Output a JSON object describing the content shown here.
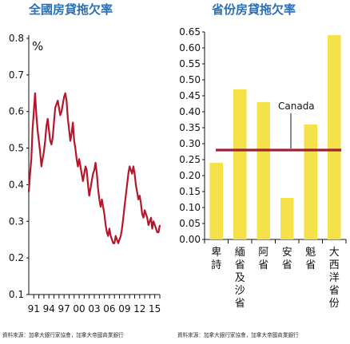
{
  "left_chart": {
    "title": "全國房貸拖欠率",
    "source": "資料來源：加拿大銀行家協會，加拿大帝國商業銀行"
  },
  "right_chart": {
    "title": "省份房貸拖欠率",
    "source": "資料來源：加拿大銀行家協會，加拿大帝國商業銀行"
  },
  "chart_data": [
    {
      "type": "line",
      "title": "全國房貸拖欠率",
      "unit_label": "%",
      "xlabel": "",
      "ylabel": "",
      "ylim": [
        0.1,
        0.8
      ],
      "y_ticks": [
        "0.8",
        "0.7",
        "0.6",
        "0.5",
        "0.4",
        "0.3",
        "0.2",
        "0.1"
      ],
      "x_tick_labels": [
        "91",
        "94",
        "97",
        "00",
        "03",
        "06",
        "09",
        "12",
        "15"
      ],
      "line_color": "#b5172a",
      "series": [
        {
          "x": [
            1990.0,
            1990.25,
            1990.5,
            1990.75,
            1991.0,
            1991.25,
            1991.5,
            1991.75,
            1992.0,
            1992.25,
            1992.5,
            1992.75,
            1993.0,
            1993.25,
            1993.5,
            1993.75,
            1994.0,
            1994.25,
            1994.5,
            1994.75,
            1995.0,
            1995.25,
            1995.5,
            1995.75,
            1996.0,
            1996.25,
            1996.5,
            1996.75,
            1997.0,
            1997.25,
            1997.5,
            1997.75,
            1998.0,
            1998.25,
            1998.5,
            1998.75,
            1999.0,
            1999.25,
            1999.5,
            1999.75,
            2000.0,
            2000.25,
            2000.5,
            2000.75,
            2001.0,
            2001.25,
            2001.5,
            2001.75,
            2002.0,
            2002.25,
            2002.5,
            2002.75,
            2003.0,
            2003.25,
            2003.5,
            2003.75,
            2004.0,
            2004.25,
            2004.5,
            2004.75,
            2005.0,
            2005.25,
            2005.5,
            2005.75,
            2006.0,
            2006.25,
            2006.5,
            2006.75,
            2007.0,
            2007.25,
            2007.5,
            2007.75,
            2008.0,
            2008.25,
            2008.5,
            2008.75,
            2009.0,
            2009.25,
            2009.5,
            2009.75,
            2010.0,
            2010.25,
            2010.5,
            2010.75,
            2011.0,
            2011.25,
            2011.5,
            2011.75,
            2012.0,
            2012.25,
            2012.5,
            2012.75,
            2013.0,
            2013.25,
            2013.5,
            2013.75,
            2014.0,
            2014.25,
            2014.5,
            2014.75,
            2015.0,
            2015.25,
            2015.5,
            2015.75,
            2016.0
          ],
          "values": [
            0.38,
            0.43,
            0.47,
            0.55,
            0.6,
            0.65,
            0.59,
            0.55,
            0.52,
            0.49,
            0.45,
            0.47,
            0.49,
            0.52,
            0.56,
            0.58,
            0.55,
            0.52,
            0.51,
            0.53,
            0.57,
            0.61,
            0.62,
            0.63,
            0.61,
            0.59,
            0.6,
            0.62,
            0.64,
            0.65,
            0.63,
            0.58,
            0.55,
            0.52,
            0.54,
            0.57,
            0.52,
            0.5,
            0.47,
            0.45,
            0.47,
            0.45,
            0.43,
            0.41,
            0.43,
            0.45,
            0.44,
            0.4,
            0.37,
            0.39,
            0.41,
            0.43,
            0.44,
            0.46,
            0.43,
            0.39,
            0.36,
            0.34,
            0.36,
            0.34,
            0.32,
            0.29,
            0.27,
            0.26,
            0.28,
            0.26,
            0.25,
            0.24,
            0.24,
            0.26,
            0.25,
            0.24,
            0.25,
            0.26,
            0.28,
            0.31,
            0.34,
            0.37,
            0.4,
            0.43,
            0.45,
            0.44,
            0.43,
            0.45,
            0.43,
            0.4,
            0.38,
            0.36,
            0.37,
            0.35,
            0.32,
            0.31,
            0.33,
            0.32,
            0.31,
            0.29,
            0.3,
            0.31,
            0.28,
            0.3,
            0.29,
            0.28,
            0.27,
            0.27,
            0.29
          ]
        }
      ]
    },
    {
      "type": "bar",
      "title": "省份房貸拖欠率",
      "xlabel": "",
      "ylabel": "",
      "ylim": [
        0.0,
        0.65
      ],
      "y_ticks": [
        "0.65",
        "0.60",
        "0.55",
        "0.50",
        "0.45",
        "0.40",
        "0.35",
        "0.30",
        "0.25",
        "0.20",
        "0.15",
        "0.10",
        "0.05",
        "0.00"
      ],
      "categories": [
        "卑詩",
        "緬省及沙省",
        "阿省",
        "安省",
        "魁省",
        "大西洋省份"
      ],
      "values": [
        0.24,
        0.47,
        0.43,
        0.13,
        0.36,
        0.64
      ],
      "bar_color": "#f5e24a",
      "reference_line": {
        "label": "Canada",
        "value": 0.28,
        "color": "#9b2335"
      }
    }
  ]
}
